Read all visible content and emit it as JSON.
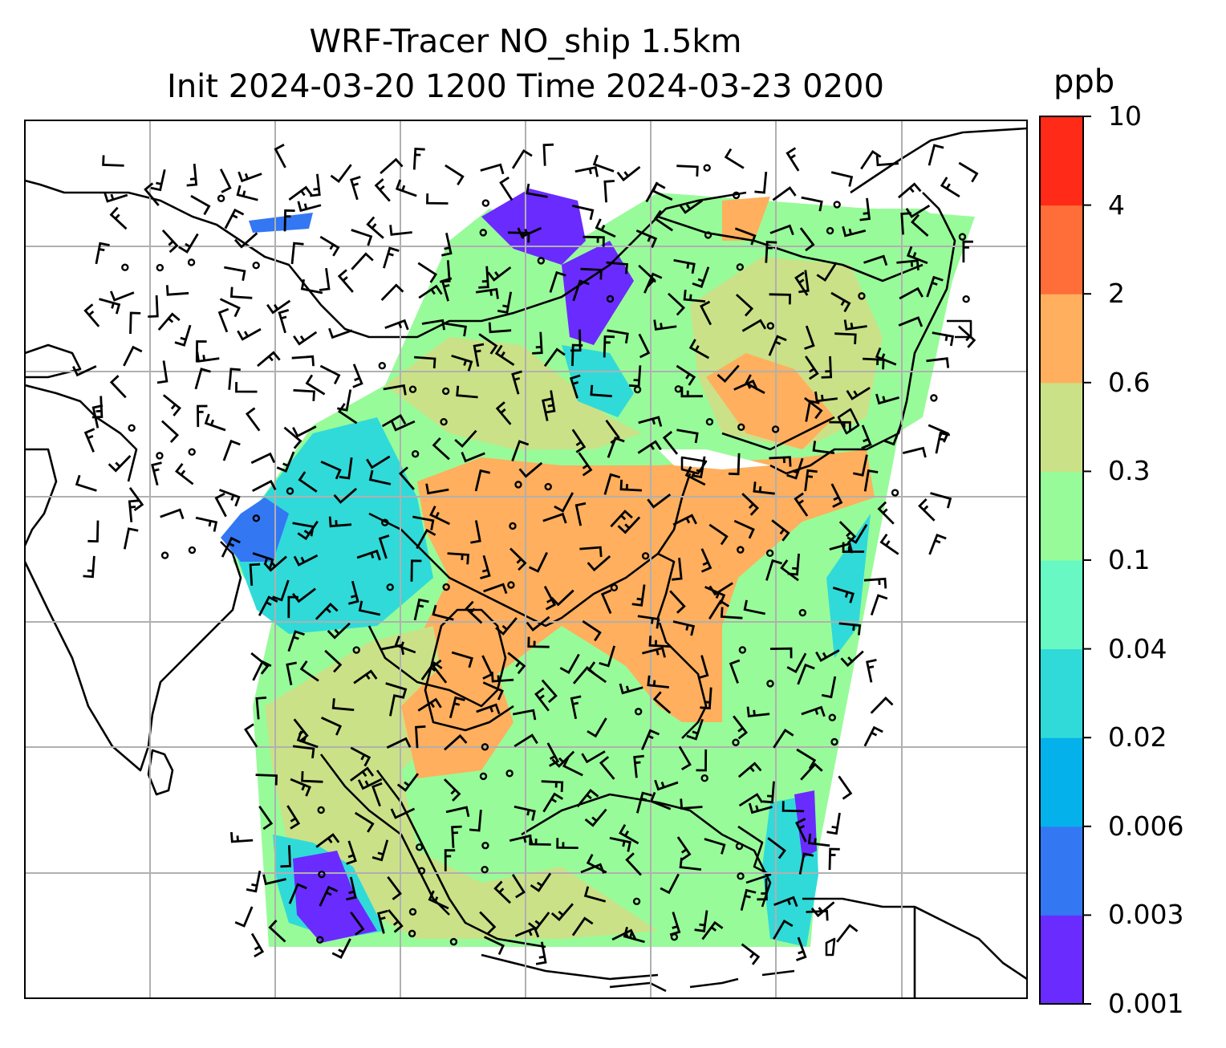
{
  "title": {
    "line1": "WRF-Tracer NO_ship 1.5km",
    "line2": "Init 2024-03-20 1200 Time 2024-03-23 0200"
  },
  "colorbar": {
    "unit": "ppb",
    "ticks": [
      "0.001",
      "0.003",
      "0.006",
      "0.02",
      "0.04",
      "0.1",
      "0.3",
      "0.6",
      "2",
      "4",
      "10"
    ],
    "colors": [
      "#6a2bff",
      "#3377f3",
      "#05b1ea",
      "#30dad9",
      "#67f8c3",
      "#98fb99",
      "#cbe187",
      "#ffaf5d",
      "#ff6d38",
      "#ff2a17"
    ]
  },
  "map": {
    "gridlines": true,
    "coastline_color": "#000000",
    "grid_color": "#b0b0b0"
  }
}
